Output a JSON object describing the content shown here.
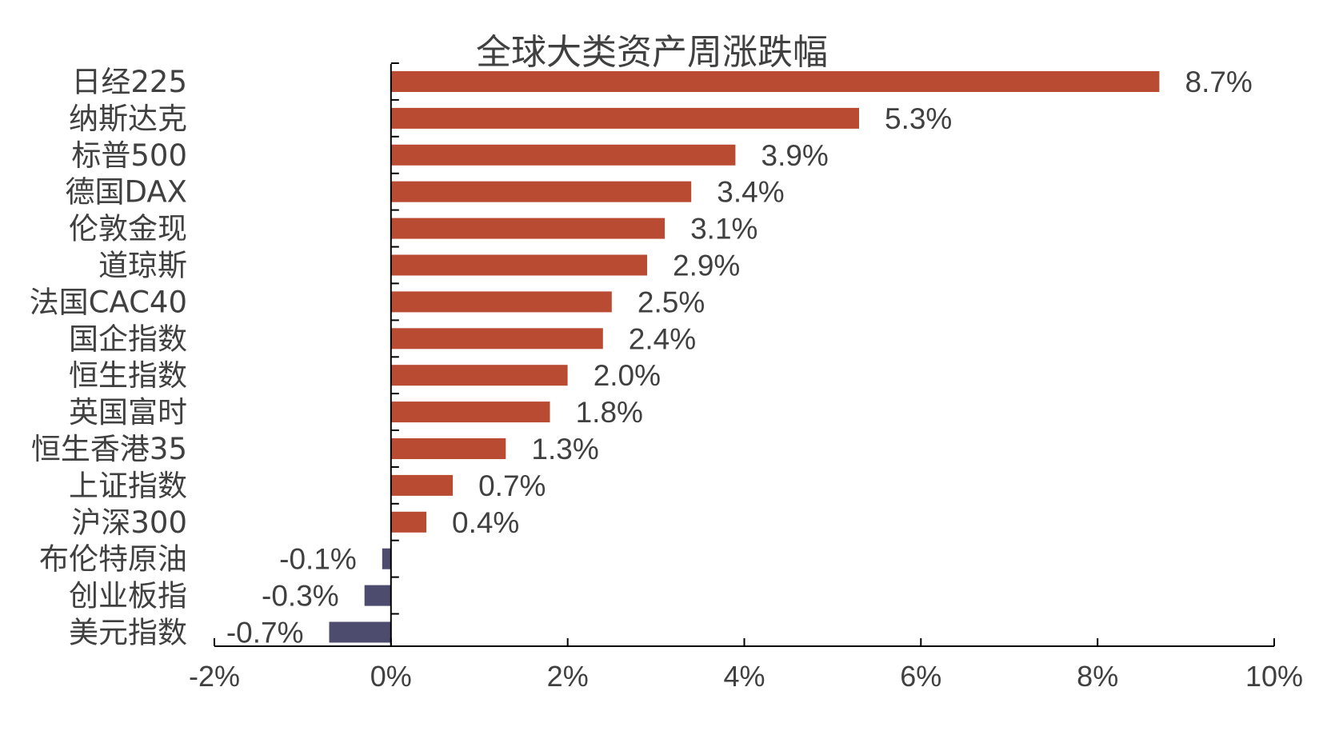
{
  "chart_data": {
    "type": "bar",
    "orientation": "horizontal",
    "title": "全球大类资产周涨跌幅",
    "xlabel": "",
    "ylabel": "",
    "xlim": [
      -2,
      10
    ],
    "x_ticks": [
      -2,
      0,
      2,
      4,
      6,
      8,
      10
    ],
    "x_tick_labels": [
      "-2%",
      "0%",
      "2%",
      "4%",
      "6%",
      "8%",
      "10%"
    ],
    "grid": false,
    "legend": "none",
    "categories": [
      "日经225",
      "纳斯达克",
      "标普500",
      "德国DAX",
      "伦敦金现",
      "道琼斯",
      "法国CAC40",
      "国企指数",
      "恒生指数",
      "英国富时",
      "恒生香港35",
      "上证指数",
      "沪深300",
      "布伦特原油",
      "创业板指",
      "美元指数"
    ],
    "values": [
      8.7,
      5.3,
      3.9,
      3.4,
      3.1,
      2.9,
      2.5,
      2.4,
      2.0,
      1.8,
      1.3,
      0.7,
      0.4,
      -0.1,
      -0.3,
      -0.7
    ],
    "value_labels": [
      "8.7%",
      "5.3%",
      "3.9%",
      "3.4%",
      "3.1%",
      "2.9%",
      "2.5%",
      "2.4%",
      "2.0%",
      "1.8%",
      "1.3%",
      "0.7%",
      "0.4%",
      "-0.1%",
      "-0.3%",
      "-0.7%"
    ],
    "colors": {
      "positive": "#B84B32",
      "negative": "#4E4C6E",
      "text": "#404040",
      "axis": "#000000"
    }
  }
}
